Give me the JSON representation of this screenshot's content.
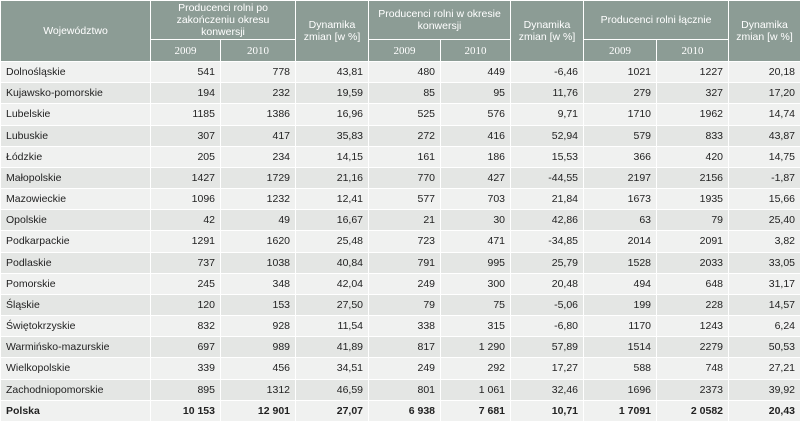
{
  "table": {
    "header": {
      "region": "Województwo",
      "groups": [
        {
          "title": "Producenci rolni po zakończeniu okresu konwersji",
          "years": [
            "2009",
            "2010"
          ],
          "change": "Dynamika zmian [w %]"
        },
        {
          "title": "Producenci rolni w okresie konwersji",
          "years": [
            "2009",
            "2010"
          ],
          "change": "Dynamika zmian [w %]"
        },
        {
          "title": "Producenci rolni łącznie",
          "years": [
            "2009",
            "2010"
          ],
          "change": "Dynamika zmian [w %]"
        }
      ]
    },
    "rows": [
      [
        "Dolnośląskie",
        "541",
        "778",
        "43,81",
        "480",
        "449",
        "-6,46",
        "1021",
        "1227",
        "20,18"
      ],
      [
        "Kujawsko-pomorskie",
        "194",
        "232",
        "19,59",
        "85",
        "95",
        "11,76",
        "279",
        "327",
        "17,20"
      ],
      [
        "Lubelskie",
        "1185",
        "1386",
        "16,96",
        "525",
        "576",
        "9,71",
        "1710",
        "1962",
        "14,74"
      ],
      [
        "Lubuskie",
        "307",
        "417",
        "35,83",
        "272",
        "416",
        "52,94",
        "579",
        "833",
        "43,87"
      ],
      [
        "Łódzkie",
        "205",
        "234",
        "14,15",
        "161",
        "186",
        "15,53",
        "366",
        "420",
        "14,75"
      ],
      [
        "Małopolskie",
        "1427",
        "1729",
        "21,16",
        "770",
        "427",
        "-44,55",
        "2197",
        "2156",
        "-1,87"
      ],
      [
        "Mazowieckie",
        "1096",
        "1232",
        "12,41",
        "577",
        "703",
        "21,84",
        "1673",
        "1935",
        "15,66"
      ],
      [
        "Opolskie",
        "42",
        "49",
        "16,67",
        "21",
        "30",
        "42,86",
        "63",
        "79",
        "25,40"
      ],
      [
        "Podkarpackie",
        "1291",
        "1620",
        "25,48",
        "723",
        "471",
        "-34,85",
        "2014",
        "2091",
        "3,82"
      ],
      [
        "Podlaskie",
        "737",
        "1038",
        "40,84",
        "791",
        "995",
        "25,79",
        "1528",
        "2033",
        "33,05"
      ],
      [
        "Pomorskie",
        "245",
        "348",
        "42,04",
        "249",
        "300",
        "20,48",
        "494",
        "648",
        "31,17"
      ],
      [
        "Śląskie",
        "120",
        "153",
        "27,50",
        "79",
        "75",
        "-5,06",
        "199",
        "228",
        "14,57"
      ],
      [
        "Świętokrzyskie",
        "832",
        "928",
        "11,54",
        "338",
        "315",
        "-6,80",
        "1170",
        "1243",
        "6,24"
      ],
      [
        "Warmińsko-mazurskie",
        "697",
        "989",
        "41,89",
        "817",
        "1 290",
        "57,89",
        "1514",
        "2279",
        "50,53"
      ],
      [
        "Wielkopolskie",
        "339",
        "456",
        "34,51",
        "249",
        "292",
        "17,27",
        "588",
        "748",
        "27,21"
      ],
      [
        "Zachodniopomorskie",
        "895",
        "1312",
        "46,59",
        "801",
        "1 061",
        "32,46",
        "1696",
        "2373",
        "39,92"
      ],
      [
        "Polska",
        "10 153",
        "12 901",
        "27,07",
        "6 938",
        "7 681",
        "10,71",
        "1 7091",
        "2 0582",
        "20,43"
      ]
    ]
  }
}
